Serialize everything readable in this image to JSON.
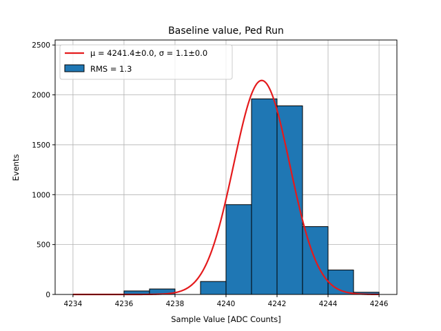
{
  "chart_data": {
    "type": "bar",
    "title": "Baseline value, Ped Run",
    "xlabel": "Sample Value [ADC Counts]",
    "ylabel": "Events",
    "xlim": [
      4233.3,
      4246.7
    ],
    "ylim": [
      0,
      2550
    ],
    "xticks": [
      4234,
      4236,
      4238,
      4240,
      4242,
      4244,
      4246
    ],
    "yticks": [
      0,
      500,
      1000,
      1500,
      2000,
      2500
    ],
    "grid": true,
    "bins": [
      {
        "left": 4236.0,
        "right": 4237.0,
        "count": 35
      },
      {
        "left": 4237.0,
        "right": 4238.0,
        "count": 55
      },
      {
        "left": 4238.0,
        "right": 4239.0,
        "count": 0
      },
      {
        "left": 4239.0,
        "right": 4240.0,
        "count": 130
      },
      {
        "left": 4240.0,
        "right": 4241.0,
        "count": 900
      },
      {
        "left": 4241.0,
        "right": 4242.0,
        "count": 1960
      },
      {
        "left": 4242.0,
        "right": 4243.0,
        "count": 1890
      },
      {
        "left": 4243.0,
        "right": 4244.0,
        "count": 680
      },
      {
        "left": 4244.0,
        "right": 4245.0,
        "count": 245
      },
      {
        "left": 4245.0,
        "right": 4246.0,
        "count": 22
      }
    ],
    "fit": {
      "type": "gaussian",
      "mu": 4241.4,
      "sigma": 1.1,
      "amplitude": 2145,
      "x_range": [
        4234,
        4246
      ]
    },
    "bar_color": "#1f77b4",
    "fit_color": "#e41a1c",
    "legend_position": "upper-left",
    "legend": [
      {
        "label": "μ = 4241.4±0.0, σ = 1.1±0.0",
        "kind": "line"
      },
      {
        "label": "RMS = 1.3",
        "kind": "patch"
      }
    ]
  }
}
